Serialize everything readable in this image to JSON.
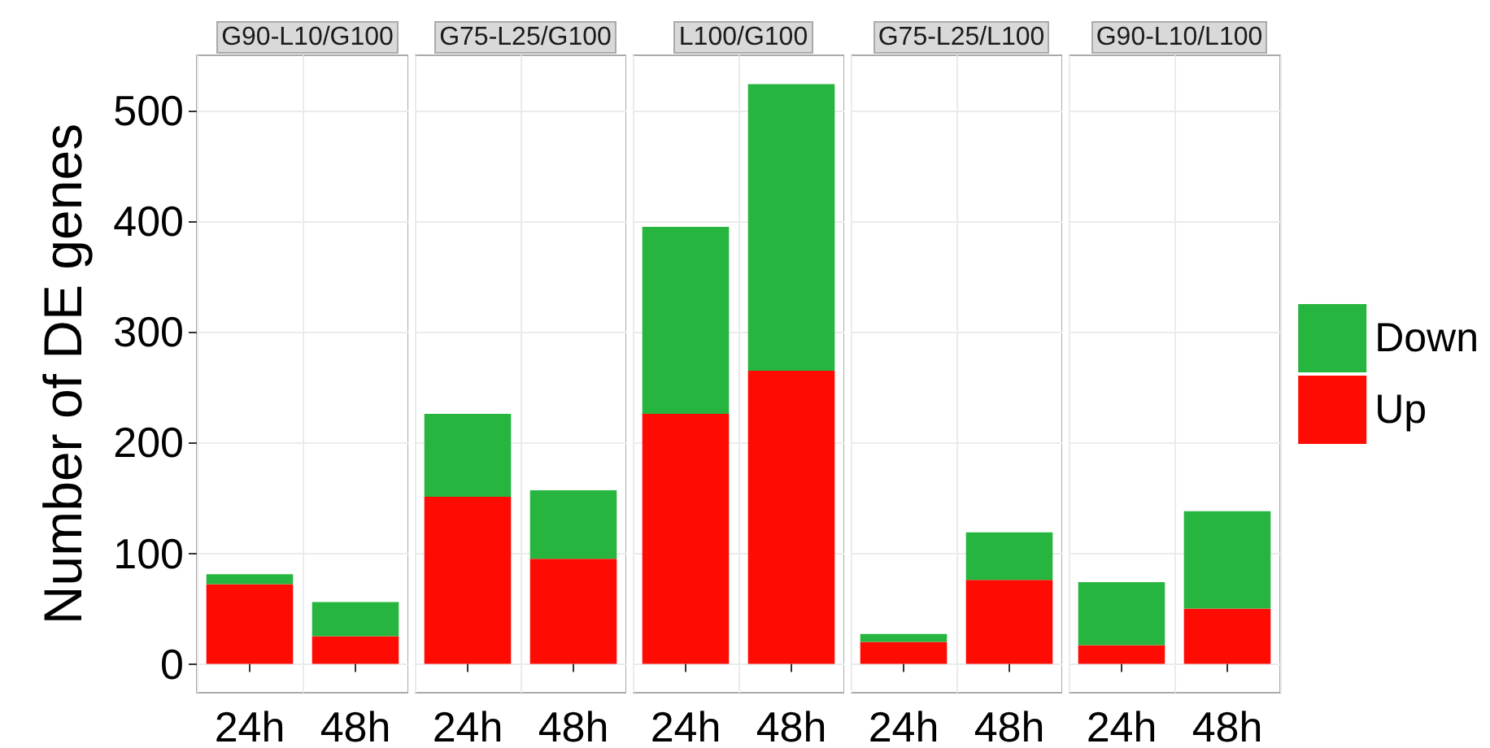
{
  "chart_data": [
    {
      "type": "bar",
      "title": "G90-L10/G100",
      "ylabel": "Number of DE genes",
      "categories": [
        "24h",
        "48h"
      ],
      "stacked": true,
      "ylim": [
        -26,
        550
      ],
      "yticks": [
        0,
        100,
        200,
        300,
        400,
        500
      ],
      "grid": true,
      "legend": false,
      "series": [
        {
          "color": "#fe0b04",
          "values": [
            72,
            25
          ]
        },
        {
          "color": "#26b63f",
          "values": [
            9,
            31
          ]
        }
      ]
    },
    {
      "type": "bar",
      "title": "G75-L25/G100",
      "categories": [
        "24h",
        "48h"
      ],
      "stacked": true,
      "ylim": [
        -26,
        550
      ],
      "yticks": [
        0,
        100,
        200,
        300,
        400,
        500
      ],
      "grid": true,
      "legend": false,
      "tick_labels": "x",
      "series": [
        {
          "color": "#fe0b04",
          "values": [
            151,
            95
          ]
        },
        {
          "color": "#26b63f",
          "values": [
            75,
            62
          ]
        }
      ]
    },
    {
      "type": "bar",
      "title": "L100/G100",
      "categories": [
        "24h",
        "48h"
      ],
      "stacked": true,
      "ylim": [
        -26,
        550
      ],
      "yticks": [
        0,
        100,
        200,
        300,
        400,
        500
      ],
      "grid": true,
      "legend": false,
      "tick_labels": "x",
      "series": [
        {
          "color": "#fe0b04",
          "values": [
            226,
            265
          ]
        },
        {
          "color": "#26b63f",
          "values": [
            169,
            259
          ]
        }
      ]
    },
    {
      "type": "bar",
      "title": "G75-L25/L100",
      "categories": [
        "24h",
        "48h"
      ],
      "stacked": true,
      "ylim": [
        -26,
        550
      ],
      "yticks": [
        0,
        100,
        200,
        300,
        400,
        500
      ],
      "grid": true,
      "legend": false,
      "tick_labels": "x",
      "series": [
        {
          "color": "#fe0b04",
          "values": [
            20,
            76
          ]
        },
        {
          "color": "#26b63f",
          "values": [
            7,
            43
          ]
        }
      ]
    },
    {
      "type": "bar",
      "title": "G90-L10/L100",
      "categories": [
        "24h",
        "48h"
      ],
      "stacked": true,
      "ylim": [
        -26,
        550
      ],
      "yticks": [
        0,
        100,
        200,
        300,
        400,
        500
      ],
      "grid": true,
      "legend": "right",
      "tick_labels": "x",
      "series": [
        {
          "name": "Up",
          "color": "#fe0b04",
          "values": [
            17,
            50
          ]
        },
        {
          "name": "Down",
          "color": "#26b63f",
          "values": [
            57,
            88
          ]
        }
      ]
    }
  ]
}
